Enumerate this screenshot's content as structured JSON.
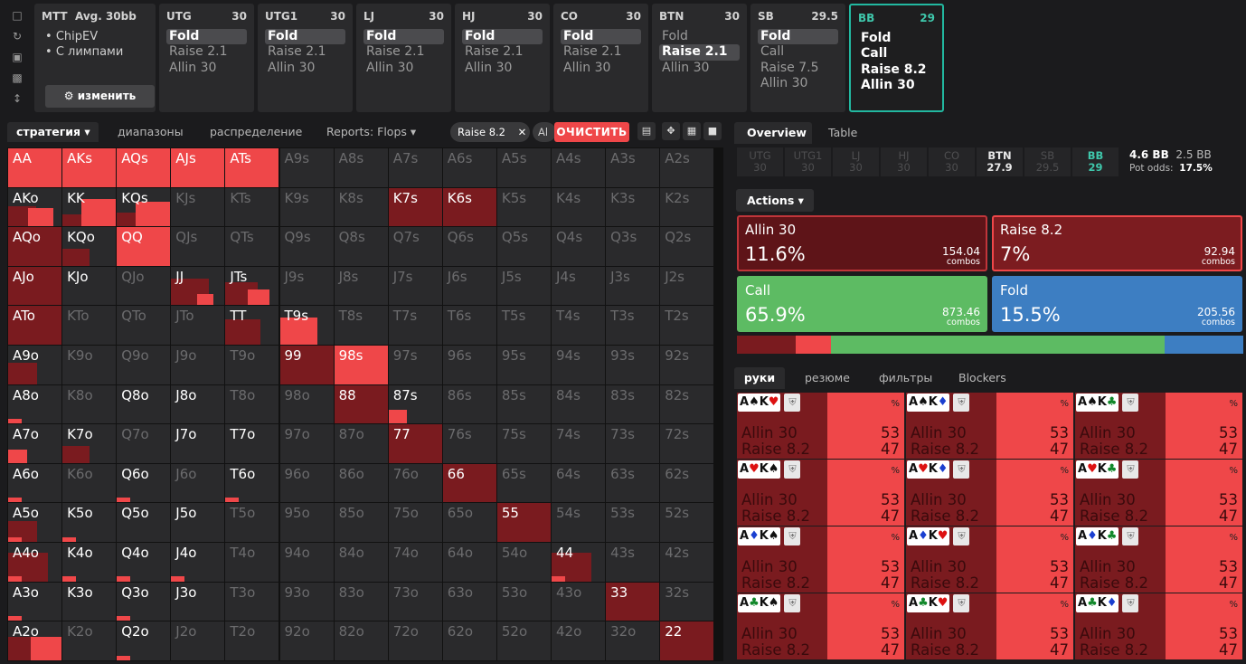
{
  "sidebar": {
    "icons": [
      "bookmark-icon",
      "refresh-icon",
      "save-icon",
      "gamepad-icon",
      "expand-icon"
    ]
  },
  "mtt": {
    "title": "MTT",
    "avg": "Avg. 30bb",
    "items": [
      "ChipEV",
      "С лимпами"
    ],
    "button": "изменить"
  },
  "positions": [
    {
      "name": "UTG",
      "stack": "30",
      "actions": [
        "Fold",
        "Raise 2.1",
        "Allin 30"
      ],
      "selected": 0
    },
    {
      "name": "UTG1",
      "stack": "30",
      "actions": [
        "Fold",
        "Raise 2.1",
        "Allin 30"
      ],
      "selected": 0
    },
    {
      "name": "LJ",
      "stack": "30",
      "actions": [
        "Fold",
        "Raise 2.1",
        "Allin 30"
      ],
      "selected": 0
    },
    {
      "name": "HJ",
      "stack": "30",
      "actions": [
        "Fold",
        "Raise 2.1",
        "Allin 30"
      ],
      "selected": 0
    },
    {
      "name": "CO",
      "stack": "30",
      "actions": [
        "Fold",
        "Raise 2.1",
        "Allin 30"
      ],
      "selected": 0
    },
    {
      "name": "BTN",
      "stack": "30",
      "actions": [
        "Fold",
        "Raise 2.1",
        "Allin 30"
      ],
      "selected": 1
    },
    {
      "name": "SB",
      "stack": "29.5",
      "actions": [
        "Fold",
        "Call",
        "Raise 7.5",
        "Allin 30"
      ],
      "selected": 0
    },
    {
      "name": "BB",
      "stack": "29",
      "actions": [
        "Fold",
        "Call",
        "Raise 8.2",
        "Allin 30"
      ],
      "selected": -1
    }
  ],
  "left_tabs": {
    "strategy": "стратегия",
    "ranges": "диапазоны",
    "distribution": "распределение",
    "reports": "Reports: Flops",
    "chip": "Raise 8.2",
    "chip2": "Al",
    "clear": "ОЧИСТИТЬ"
  },
  "grid": {
    "ranks": [
      "A",
      "K",
      "Q",
      "J",
      "T",
      "9",
      "8",
      "7",
      "6",
      "5",
      "4",
      "3",
      "2"
    ],
    "colors": {
      "allin": "#7a1b1f",
      "raise": "#ef4749",
      "empty": "#2a2a2c"
    },
    "hands": {
      "AA": {
        "a": 0,
        "r": 1
      },
      "AKs": {
        "a": 0,
        "r": 1
      },
      "AQs": {
        "a": 0,
        "r": 1
      },
      "AJs": {
        "a": 0,
        "r": 1
      },
      "ATs": {
        "a": 0,
        "r": 1
      },
      "AKo": {
        "a": 0.53,
        "r": 0.47
      },
      "KK": {
        "a": 0.3,
        "r": 0.7
      },
      "KQs": {
        "a": 0.35,
        "r": 0.65
      },
      "K7s": {
        "a": 1,
        "r": 0
      },
      "K6s": {
        "a": 1,
        "r": 0
      },
      "AQo": {
        "a": 1,
        "r": 0
      },
      "KQo": {
        "a": 0.45,
        "r": 0
      },
      "QQ": {
        "a": 0,
        "r": 1
      },
      "AJo": {
        "a": 1,
        "r": 0
      },
      "JJ": {
        "a": 0.7,
        "r": 0.3
      },
      "JTs": {
        "a": 0.6,
        "r": 0.4
      },
      "ATo": {
        "a": 1,
        "r": 0
      },
      "TT": {
        "a": 0.65,
        "r": 0
      },
      "T9s": {
        "a": 0,
        "r": 0.7
      },
      "A9o": {
        "a": 0.55,
        "r": 0
      },
      "99": {
        "a": 1,
        "r": 0
      },
      "98s": {
        "a": 0,
        "r": 1
      },
      "A8o": {
        "a": 0,
        "r": 0.12
      },
      "88": {
        "a": 1,
        "r": 0
      },
      "87s": {
        "a": 0,
        "r": 0.35
      },
      "A7o": {
        "a": 0,
        "r": 0.35
      },
      "K7o": {
        "a": 0.45,
        "r": 0
      },
      "77": {
        "a": 1,
        "r": 0
      },
      "A6o": {
        "a": 0,
        "r": 0.12
      },
      "Q6o": {
        "a": 0,
        "r": 0.2
      },
      "T6o": {
        "a": 0,
        "r": 0.12
      },
      "66": {
        "a": 1,
        "r": 0
      },
      "A5o": {
        "a": 0.55,
        "r": 0.25
      },
      "K5o": {
        "a": 0,
        "r": 0.2
      },
      "55": {
        "a": 1,
        "r": 0
      },
      "A4o": {
        "a": 0.75,
        "r": 0.05
      },
      "K4o": {
        "a": 0,
        "r": 0.22
      },
      "Q4o": {
        "a": 0,
        "r": 0.2
      },
      "J4o": {
        "a": 0,
        "r": 0.12
      },
      "44": {
        "a": 0.75,
        "r": 0.25
      },
      "A3o": {
        "a": 0,
        "r": 0.25
      },
      "Q3o": {
        "a": 0,
        "r": 0.18
      },
      "33": {
        "a": 1,
        "r": 0
      },
      "A2o": {
        "a": 0.6,
        "r": 0.6
      },
      "Q2o": {
        "a": 0,
        "r": 0.18
      },
      "22": {
        "a": 1,
        "r": 0
      }
    },
    "bright": [
      "AA",
      "AKs",
      "AQs",
      "AJs",
      "ATs",
      "AKo",
      "KK",
      "KQs",
      "K7s",
      "K6s",
      "AQo",
      "KQo",
      "QQ",
      "AJo",
      "KJo",
      "JJ",
      "JTs",
      "ATo",
      "TT",
      "T9s",
      "A9o",
      "99",
      "98s",
      "A8o",
      "Q8o",
      "J8o",
      "88",
      "87s",
      "A7o",
      "K7o",
      "J7o",
      "T7o",
      "77",
      "A6o",
      "Q6o",
      "T6o",
      "66",
      "A5o",
      "K5o",
      "Q5o",
      "J5o",
      "55",
      "A4o",
      "K4o",
      "Q4o",
      "J4o",
      "44",
      "A3o",
      "K3o",
      "Q3o",
      "J3o",
      "33",
      "A2o",
      "Q2o",
      "22"
    ]
  },
  "overview": {
    "tab1": "Overview",
    "tab2": "Table",
    "positions": [
      {
        "name": "UTG",
        "stack": "30",
        "state": "dim"
      },
      {
        "name": "UTG1",
        "stack": "30",
        "state": "dim"
      },
      {
        "name": "LJ",
        "stack": "30",
        "state": "dim"
      },
      {
        "name": "HJ",
        "stack": "30",
        "state": "dim"
      },
      {
        "name": "CO",
        "stack": "30",
        "state": "dim"
      },
      {
        "name": "BTN",
        "stack": "27.9",
        "state": "on"
      },
      {
        "name": "SB",
        "stack": "29.5",
        "state": "dim"
      },
      {
        "name": "BB",
        "stack": "29",
        "state": "bb"
      }
    ],
    "pot": "4.6 BB",
    "call": "2.5 BB",
    "pot_odds_label": "Pot odds:",
    "pot_odds": "17.5%"
  },
  "actions": {
    "label": "Actions",
    "boxes": [
      {
        "name": "Allin 30",
        "pct": "11.6%",
        "combos": "154.04",
        "combos_label": "combos",
        "color": "#5e1418",
        "border": "#c0353a"
      },
      {
        "name": "Raise 8.2",
        "pct": "7%",
        "combos": "92.94",
        "combos_label": "combos",
        "color": "#7c1c20",
        "border": "#ef4749"
      },
      {
        "name": "Call",
        "pct": "65.9%",
        "combos": "873.46",
        "combos_label": "combos",
        "color": "#5dbb63",
        "border": "#5dbb63"
      },
      {
        "name": "Fold",
        "pct": "15.5%",
        "combos": "205.56",
        "combos_label": "combos",
        "color": "#3d7ec2",
        "border": "#3d7ec2"
      }
    ],
    "bar": [
      {
        "pct": 11.6,
        "color": "#7a1b1f"
      },
      {
        "pct": 7,
        "color": "#ef4749"
      },
      {
        "pct": 65.9,
        "color": "#5dbb63"
      },
      {
        "pct": 15.5,
        "color": "#3d7ec2"
      }
    ]
  },
  "hands_tabs": {
    "hands": "руки",
    "summary": "резюме",
    "filters": "фильтры",
    "blockers": "Blockers"
  },
  "hand_cells": [
    {
      "c1": "A♠",
      "c2": "K♥",
      "s2": "red"
    },
    {
      "c1": "A♠",
      "c2": "K♦",
      "s2": "blue"
    },
    {
      "c1": "A♠",
      "c2": "K♣",
      "s2": "green"
    },
    {
      "c1": "A♥",
      "c2": "K♠",
      "s1": "red"
    },
    {
      "c1": "A♥",
      "c2": "K♦",
      "s1": "red",
      "s2": "blue"
    },
    {
      "c1": "A♥",
      "c2": "K♣",
      "s1": "red",
      "s2": "green"
    },
    {
      "c1": "A♦",
      "c2": "K♠",
      "s1": "blue"
    },
    {
      "c1": "A♦",
      "c2": "K♥",
      "s1": "blue",
      "s2": "red"
    },
    {
      "c1": "A♦",
      "c2": "K♣",
      "s1": "blue",
      "s2": "green"
    },
    {
      "c1": "A♣",
      "c2": "K♠",
      "s1": "green"
    },
    {
      "c1": "A♣",
      "c2": "K♥",
      "s1": "green",
      "s2": "red"
    },
    {
      "c1": "A♣",
      "c2": "K♦",
      "s1": "green",
      "s2": "blue"
    }
  ],
  "hand_values": {
    "pct": "%",
    "l1": "Allin 30",
    "l2": "Raise 8.2",
    "v1": "53",
    "v2": "47"
  }
}
